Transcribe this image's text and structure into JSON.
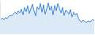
{
  "chart_data": {
    "type": "area",
    "color": "#3f86d1",
    "values": [
      45,
      48,
      44,
      50,
      47,
      52,
      58,
      55,
      62,
      66,
      60,
      70,
      64,
      75,
      58,
      80,
      68,
      85,
      62,
      78,
      90,
      70,
      55,
      82,
      74,
      92,
      66,
      88,
      60,
      76,
      94,
      72,
      84,
      58,
      86,
      70,
      92,
      78,
      64,
      80,
      56,
      72,
      68,
      60,
      74,
      52,
      66,
      58,
      62,
      48,
      40,
      36,
      42,
      38,
      35,
      40,
      37,
      39,
      44,
      41
    ],
    "ylim": [
      0,
      100
    ],
    "grid": false,
    "tick_labels": false
  }
}
